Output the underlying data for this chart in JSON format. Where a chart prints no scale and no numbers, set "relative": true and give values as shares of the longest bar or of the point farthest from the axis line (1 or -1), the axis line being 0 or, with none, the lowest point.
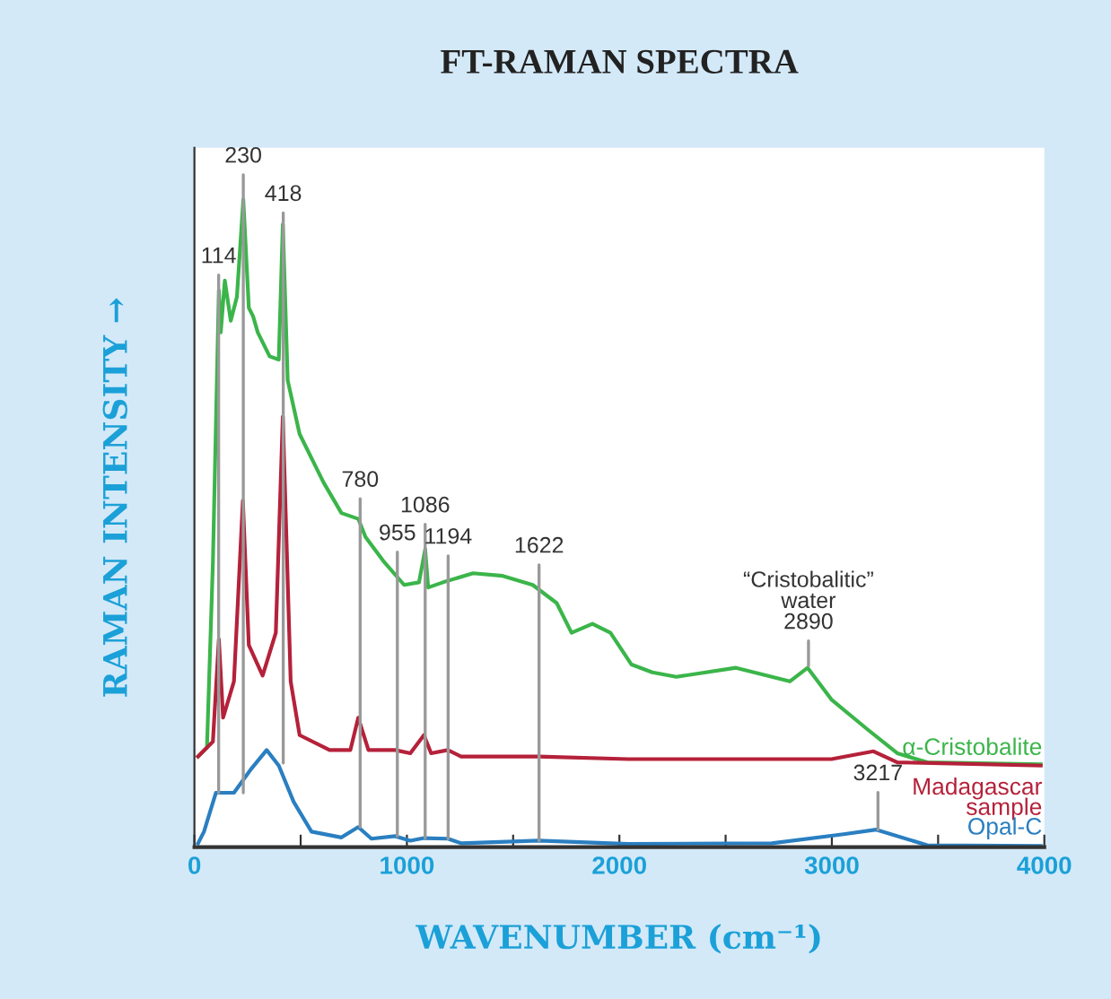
{
  "chart_data": {
    "type": "line",
    "title": "FT-RAMAN SPECTRA",
    "xlabel": "WAVENUMBER (cm⁻¹)",
    "ylabel": "RAMAN INTENSITY →",
    "relative": true,
    "grid": false,
    "xlim": [
      0,
      4000
    ],
    "xticks": [
      0,
      {
        "value": 500,
        "label": null
      },
      1000,
      {
        "value": 1500,
        "label": null
      },
      2000,
      {
        "value": 2500,
        "label": null
      },
      3000,
      {
        "value": 3500,
        "label": null
      },
      4000
    ],
    "series": [
      {
        "name": "α-Cristobalite",
        "color": "#3bb54a",
        "x": [
          17,
          59,
          87,
          115,
          124,
          143,
          171,
          200,
          230,
          256,
          276,
          298,
          354,
          397,
          416,
          439,
          495,
          608,
          692,
          771,
          805,
          889,
          987,
          1057,
          1086,
          1100,
          1170,
          1311,
          1451,
          1592,
          1705,
          1775,
          1873,
          1958,
          2057,
          2155,
          2268,
          2549,
          2802,
          2886,
          2998,
          3167,
          3308,
          3449,
          3983
        ],
        "values": [
          0.14,
          0.154,
          0.44,
          0.86,
          0.795,
          0.875,
          0.813,
          0.85,
          1.0,
          0.833,
          0.82,
          0.795,
          0.758,
          0.753,
          0.962,
          0.721,
          0.638,
          0.563,
          0.516,
          0.507,
          0.479,
          0.442,
          0.405,
          0.409,
          0.46,
          0.401,
          0.409,
          0.423,
          0.419,
          0.405,
          0.377,
          0.331,
          0.345,
          0.331,
          0.282,
          0.27,
          0.263,
          0.277,
          0.256,
          0.277,
          0.228,
          0.182,
          0.145,
          0.131,
          0.128
        ]
      },
      {
        "name": "Madagascar\nsample",
        "color": "#b5213a",
        "x": [
          17,
          87,
          115,
          135,
          186,
          228,
          256,
          321,
          383,
          416,
          453,
          495,
          636,
          734,
          771,
          819,
          945,
          1016,
          1080,
          1114,
          1193,
          1255,
          1620,
          2042,
          2998,
          3196,
          3308,
          3983
        ],
        "values": [
          0.14,
          0.163,
          0.321,
          0.2,
          0.256,
          0.535,
          0.312,
          0.265,
          0.331,
          0.665,
          0.256,
          0.173,
          0.15,
          0.15,
          0.2,
          0.15,
          0.15,
          0.145,
          0.173,
          0.145,
          0.15,
          0.14,
          0.14,
          0.136,
          0.136,
          0.148,
          0.131,
          0.126
        ]
      },
      {
        "name": "Opal-C",
        "color": "#2a7fc1",
        "x": [
          17,
          45,
          101,
          186,
          270,
          340,
          397,
          467,
          551,
          692,
          771,
          833,
          945,
          1016,
          1080,
          1193,
          1255,
          1620,
          2042,
          2717,
          3055,
          3209,
          3449,
          3983
        ],
        "values": [
          0.006,
          0.024,
          0.084,
          0.084,
          0.122,
          0.15,
          0.126,
          0.07,
          0.024,
          0.015,
          0.031,
          0.013,
          0.017,
          0.01,
          0.014,
          0.013,
          0.006,
          0.01,
          0.005,
          0.006,
          0.02,
          0.027,
          0.003,
          0.002
        ]
      }
    ],
    "annotations": [
      {
        "text": "114",
        "x": 114,
        "y": 0.084
      },
      {
        "text": "230",
        "x": 230,
        "y": 0.084
      },
      {
        "text": "418",
        "x": 418,
        "y": 0.13
      },
      {
        "text": "780",
        "x": 780,
        "y": 0.031
      },
      {
        "text": "955",
        "x": 955,
        "y": 0.017
      },
      {
        "text": "1086",
        "x": 1086,
        "y": 0.014
      },
      {
        "text": "1194",
        "x": 1194,
        "y": 0.013
      },
      {
        "text": "1622",
        "x": 1622,
        "y": 0.01
      },
      {
        "text": "“Cristobalitic”\nwater\n2890",
        "x": 2890,
        "y": 0.28
      },
      {
        "text": "3217",
        "x": 3217,
        "y": 0.027
      }
    ]
  }
}
